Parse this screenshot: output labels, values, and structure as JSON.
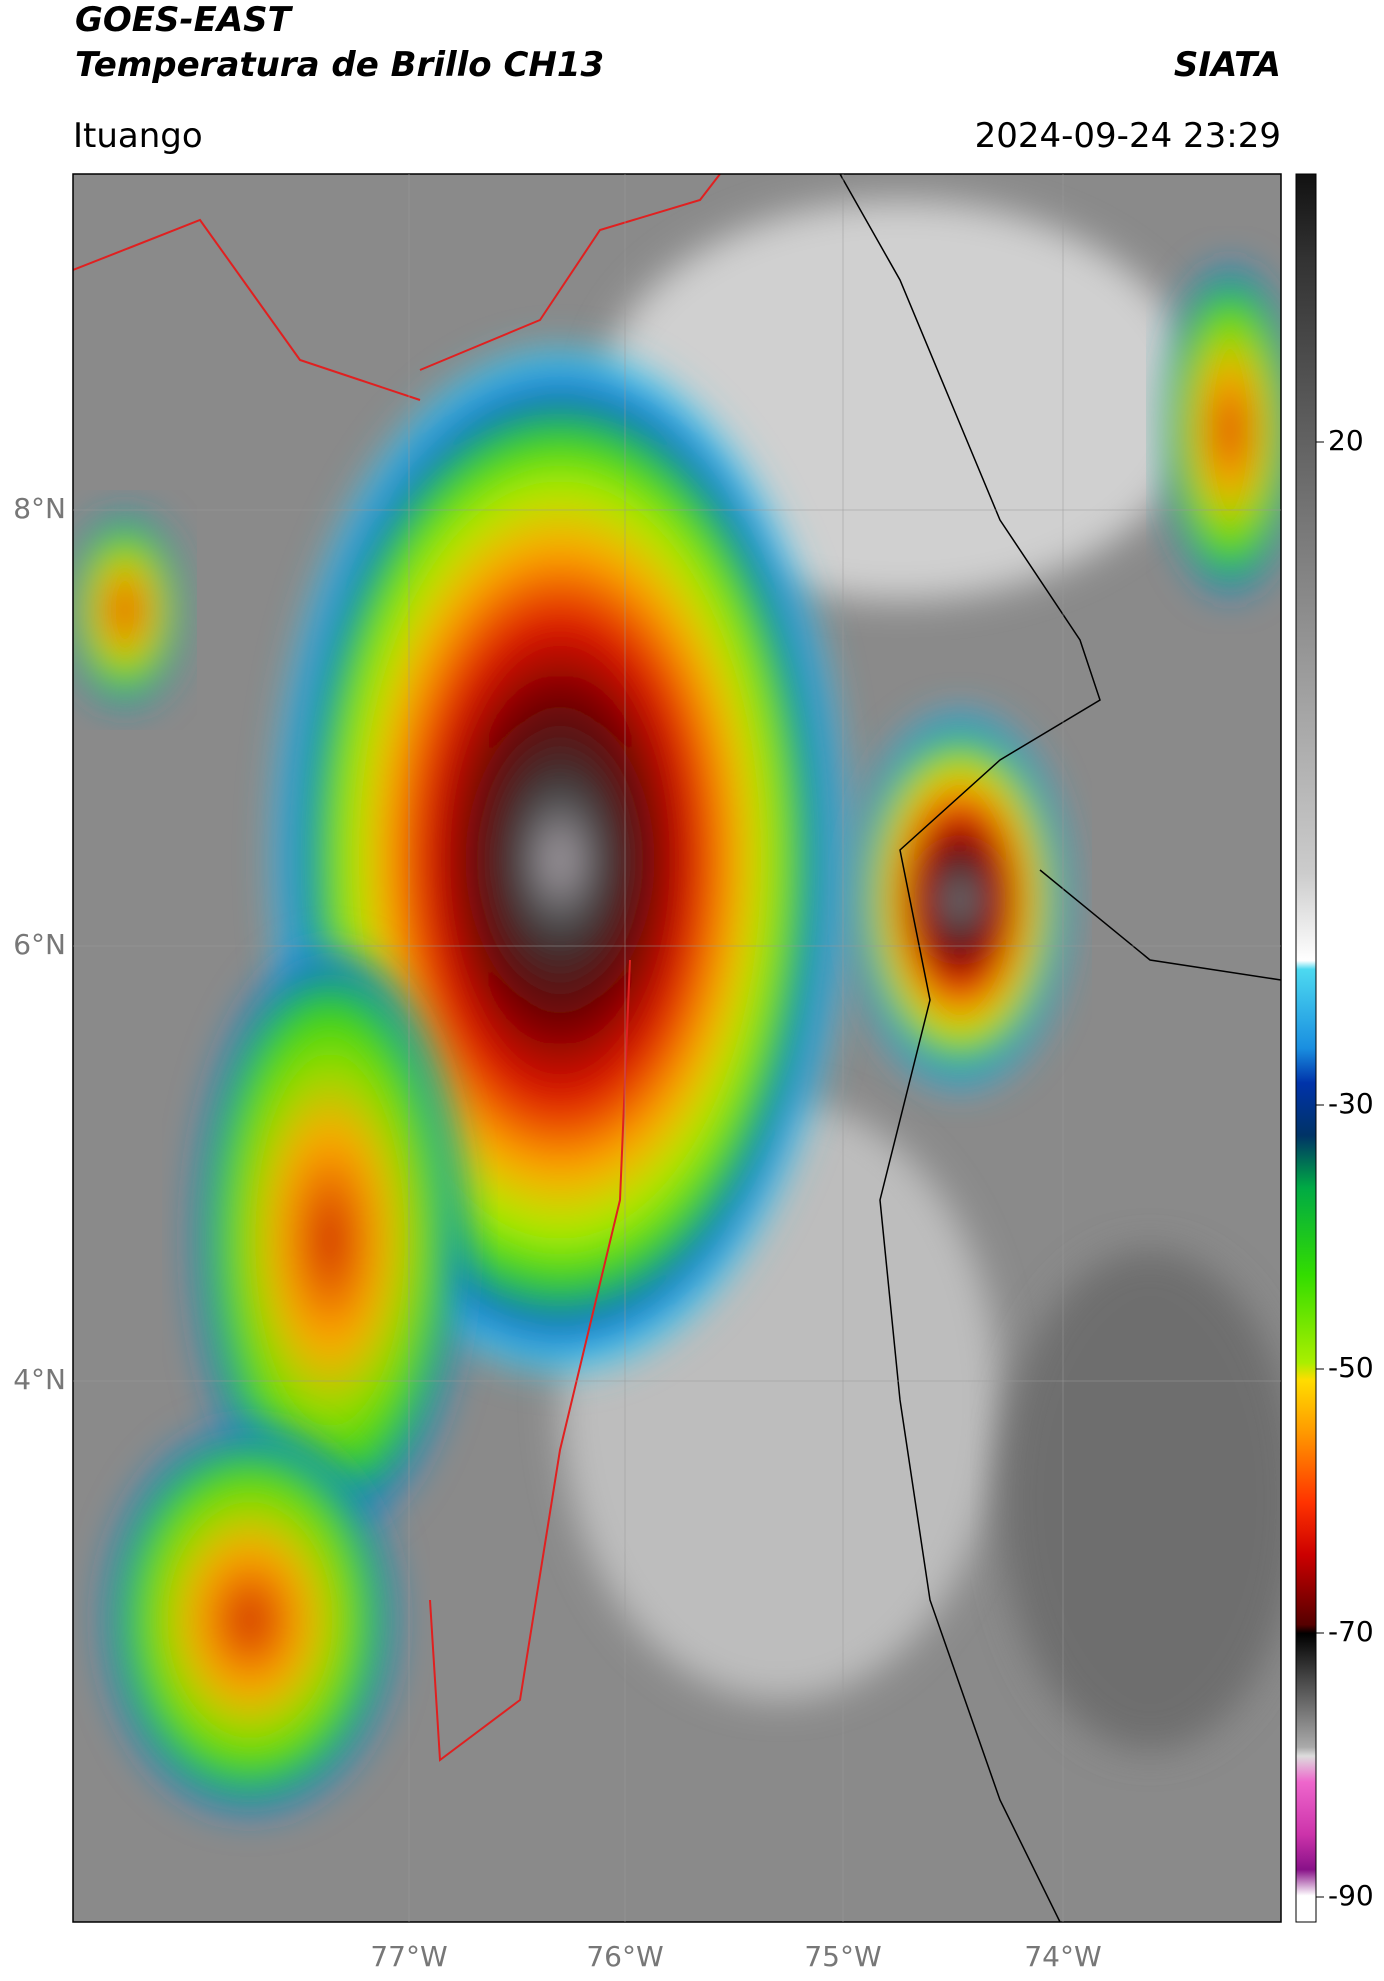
{
  "header": {
    "source": "GOES-EAST",
    "product": "Temperatura de Brillo CH13",
    "org": "SIATA",
    "region": "Ituango",
    "datetime": "2024-09-24 23:29"
  },
  "map": {
    "lat_labels": [
      "8°N",
      "6°N",
      "4°N"
    ],
    "lon_labels": [
      "77°W",
      "76°W",
      "75°W",
      "74°W"
    ]
  },
  "colorbar": {
    "labels": [
      "20",
      "-30",
      "-50",
      "-70",
      "-90"
    ]
  }
}
